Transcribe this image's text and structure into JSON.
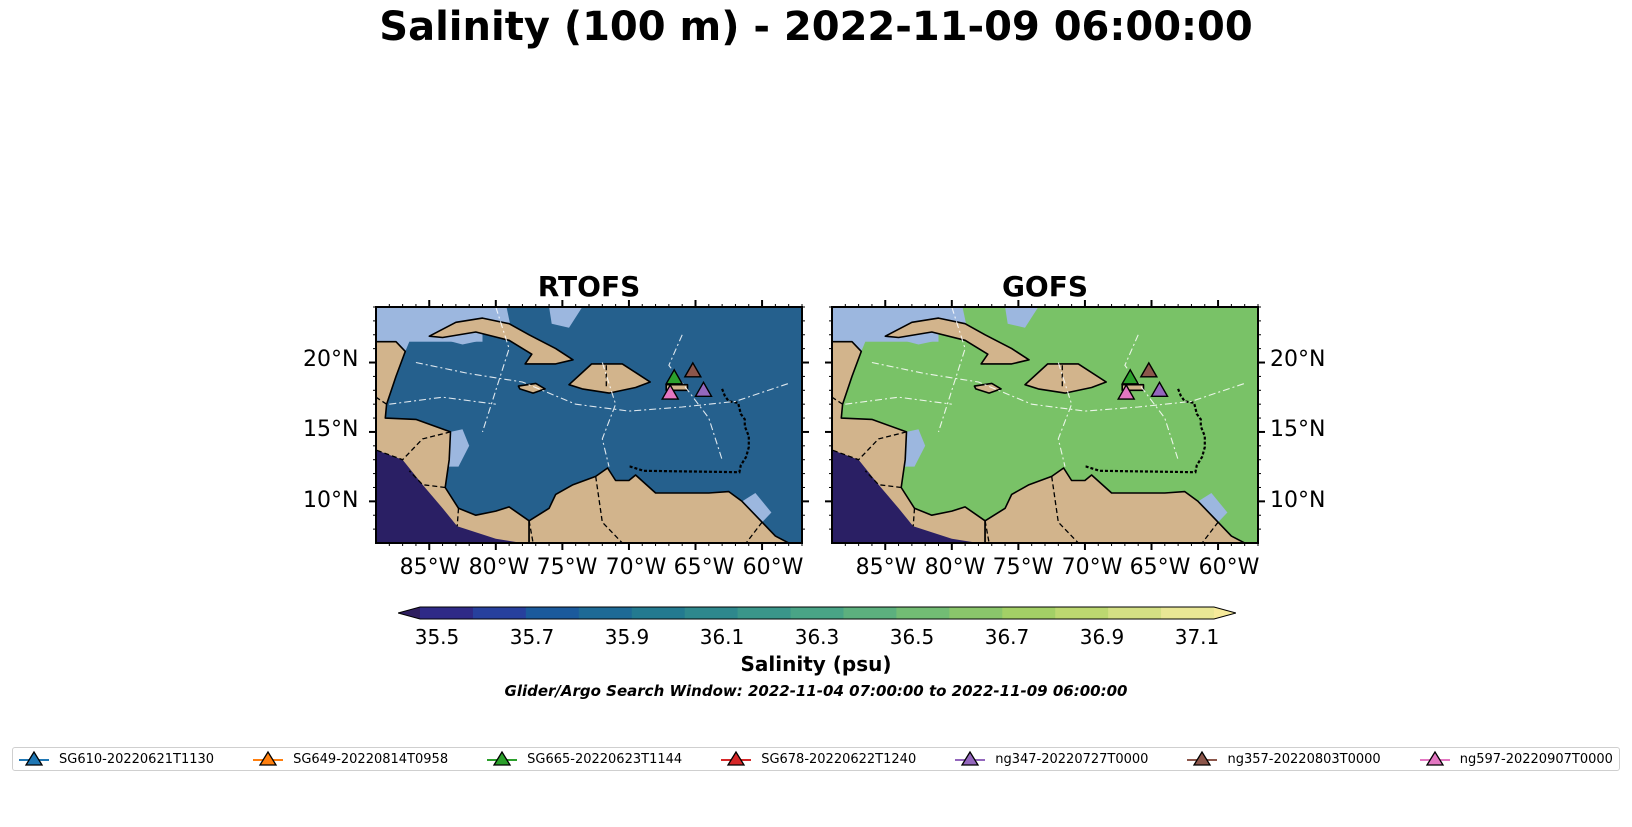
{
  "title": "Salinity (100 m) - 2022-11-09 06:00:00",
  "panels": [
    {
      "title": "RTOFS",
      "ocean": "#25608d"
    },
    {
      "title": "GOFS",
      "ocean": "#79c267"
    }
  ],
  "colors": {
    "land": "#d2b48c",
    "shelf": "#9cb7df",
    "coast": "#000000"
  },
  "lat_labels": [
    "20°N",
    "15°N",
    "10°N"
  ],
  "lon_labels": [
    "85°W",
    "80°W",
    "75°W",
    "70°W",
    "65°W",
    "60°W"
  ],
  "colorbar": {
    "title": "Salinity (psu)",
    "ticks": [
      "35.5",
      "35.7",
      "35.9",
      "36.1",
      "36.3",
      "36.5",
      "36.7",
      "36.9",
      "37.1"
    ],
    "levels": 17,
    "colors": [
      "#2e1e5f",
      "#2f2a87",
      "#27409d",
      "#1b5a9c",
      "#1e6a96",
      "#237a90",
      "#2e888d",
      "#3a968a",
      "#49a486",
      "#5cb07e",
      "#72bc74",
      "#8ac66b",
      "#a3d066",
      "#bcd870",
      "#d4e084",
      "#e9e795",
      "#f6ea9a"
    ]
  },
  "search_window": "Glider/Argo Search Window: 2022-11-04 07:00:00 to 2022-11-09 06:00:00",
  "gliders": [
    {
      "name": "SG610-20220621T1130",
      "color": "#1f77b4"
    },
    {
      "name": "SG649-20220814T0958",
      "color": "#ff7f0e"
    },
    {
      "name": "SG665-20220623T1144",
      "color": "#2ca02c"
    },
    {
      "name": "SG678-20220622T1240",
      "color": "#d62728"
    },
    {
      "name": "ng347-20220727T0000",
      "color": "#9467bd"
    },
    {
      "name": "ng357-20220803T0000",
      "color": "#8c564b"
    },
    {
      "name": "ng597-20220907T0000",
      "color": "#e377c2"
    }
  ],
  "glider_positions": [
    {
      "glider": "SG665-20220623T1144",
      "lon": -66.6,
      "lat": 18.9
    },
    {
      "glider": "ng357-20220803T0000",
      "lon": -65.2,
      "lat": 19.4
    },
    {
      "glider": "ng347-20220727T0000",
      "lon": -64.4,
      "lat": 18.0
    },
    {
      "glider": "ng597-20220907T0000",
      "lon": -66.9,
      "lat": 17.8
    }
  ]
}
